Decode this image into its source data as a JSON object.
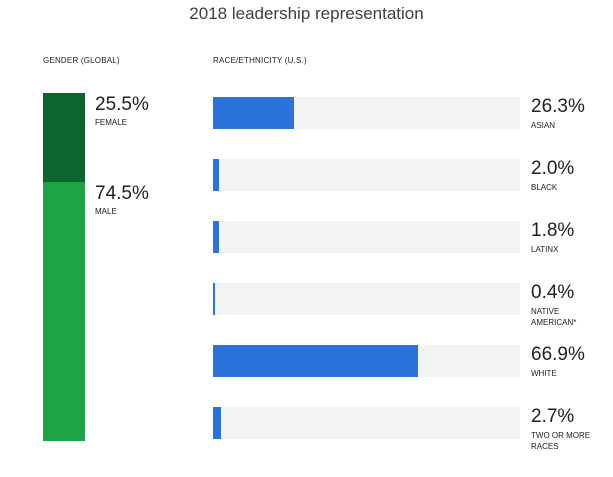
{
  "title": "2018 leadership representation",
  "colors": {
    "female": "#0d652d",
    "male": "#1ea446",
    "race_bar": "#2a73db",
    "track": "#f1f3f4"
  },
  "chart_data": [
    {
      "type": "bar",
      "orientation": "stacked-vertical",
      "title": "GENDER (GLOBAL)",
      "categories": [
        "FEMALE",
        "MALE"
      ],
      "values": [
        25.5,
        74.5
      ],
      "value_labels": [
        "25.5%",
        "74.5%"
      ],
      "ylim": [
        0,
        100
      ]
    },
    {
      "type": "bar",
      "orientation": "horizontal",
      "title": "RACE/ETHNICITY  (U.S.)",
      "categories": [
        "ASIAN",
        "BLACK",
        "LATINX",
        "NATIVE AMERICAN*",
        "WHITE",
        "TWO OR MORE RACES"
      ],
      "values": [
        26.3,
        2.0,
        1.8,
        0.4,
        66.9,
        2.7
      ],
      "value_labels": [
        "26.3%",
        "2.0%",
        "1.8%",
        "0.4%",
        "66.9%",
        "2.7%"
      ],
      "xlim": [
        0,
        100
      ]
    }
  ]
}
